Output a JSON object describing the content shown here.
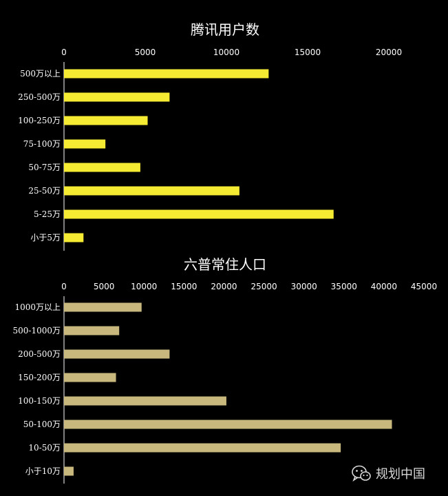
{
  "chart_data": [
    {
      "type": "bar",
      "orientation": "horizontal",
      "title": "腾讯用户数",
      "categories": [
        "500万以上",
        "250-500万",
        "100-250万",
        "75-100万",
        "50-75万",
        "25-50万",
        "5-25万",
        "小于5万"
      ],
      "values": [
        12600,
        6500,
        5150,
        2550,
        4700,
        10800,
        16600,
        1200
      ],
      "xlim": [
        0,
        20000
      ],
      "xticks": [
        "0",
        "5000",
        "10000",
        "15000",
        "20000"
      ],
      "color": "#f5eb32",
      "grid": false,
      "tick_position": "top"
    },
    {
      "type": "bar",
      "orientation": "horizontal",
      "title": "六普常住人口",
      "categories": [
        "1000万以上",
        "500-1000万",
        "200-500万",
        "150-200万",
        "100-150万",
        "50-100万",
        "10-50万",
        "小于10万"
      ],
      "values": [
        9700,
        6900,
        13200,
        6500,
        20300,
        41000,
        34600,
        1200
      ],
      "xlim": [
        0,
        45000
      ],
      "xticks": [
        "0",
        "5000",
        "10000",
        "15000",
        "20000",
        "25000",
        "30000",
        "35000",
        "40000",
        "45000"
      ],
      "color": "#c9b87e",
      "grid": false,
      "tick_position": "top"
    }
  ],
  "watermark": {
    "text": "规划中国",
    "icon": "wechat-icon"
  }
}
